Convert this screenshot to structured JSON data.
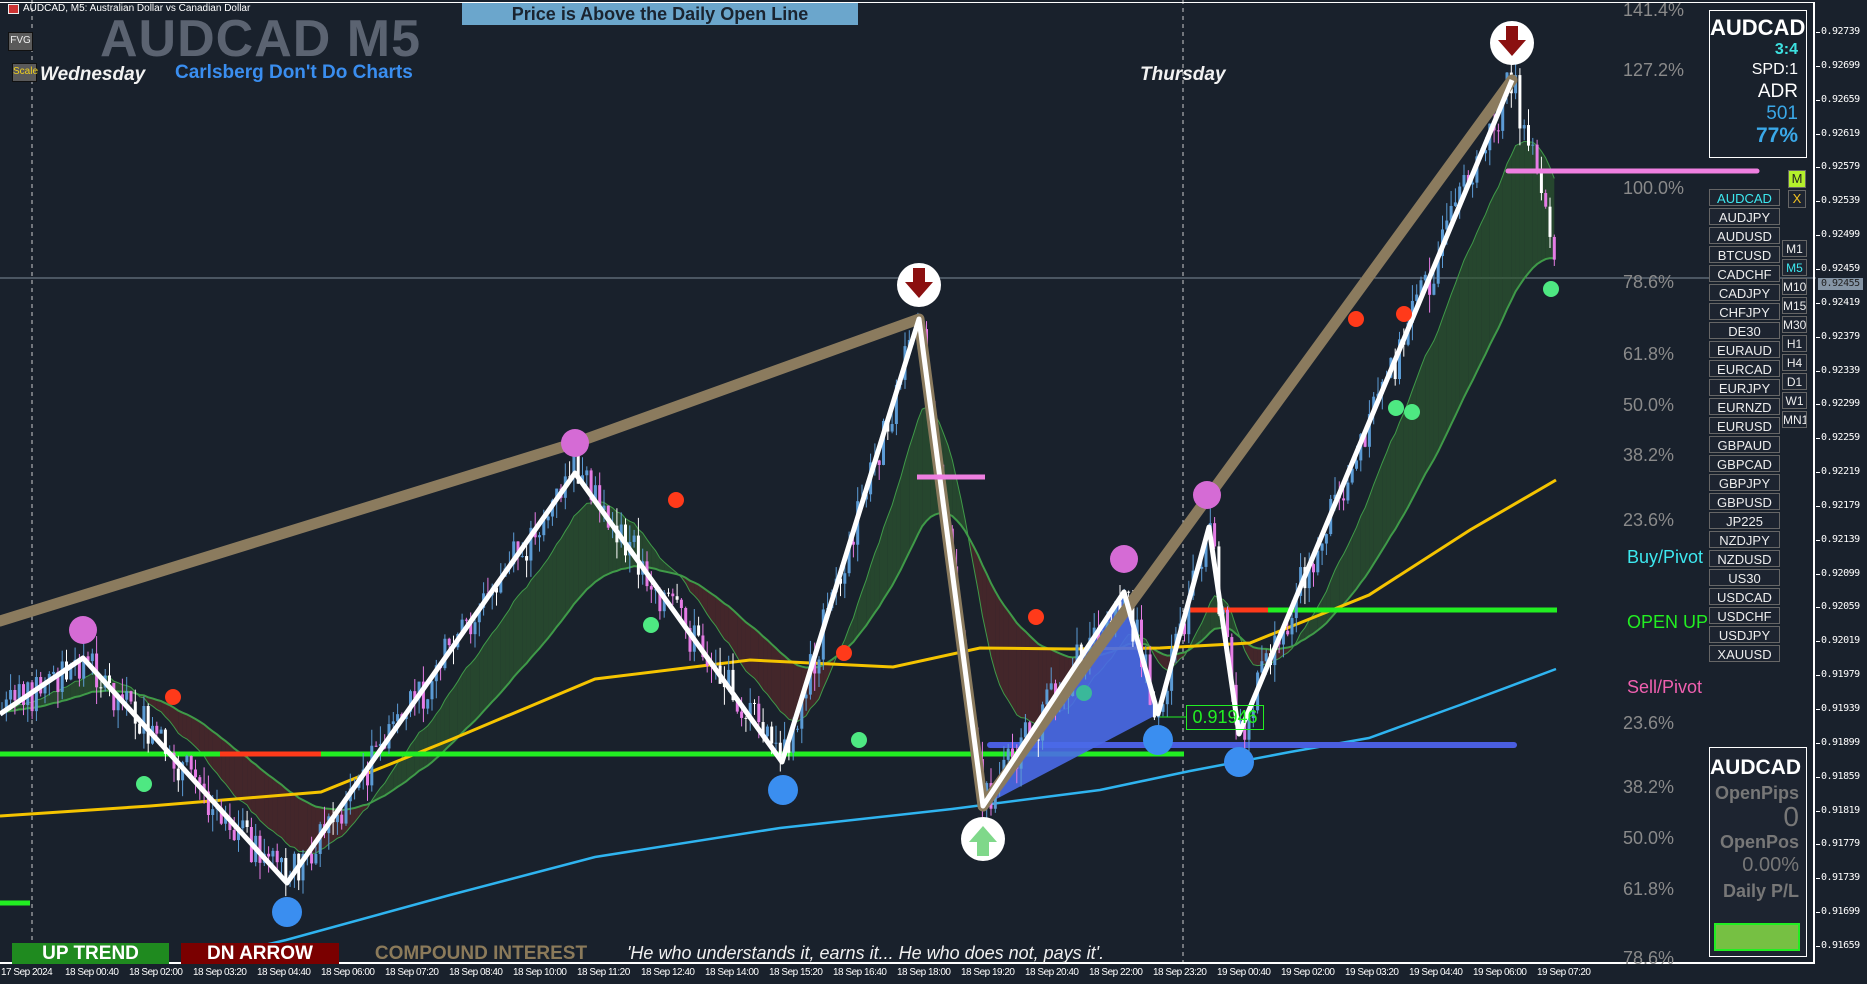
{
  "window": {
    "title": "AUDCAD, M5:  Australian Dollar vs Canadian Dollar"
  },
  "banner": "Price is Above the Daily Open Line",
  "watermark": {
    "symbol": "AUDCAD M5",
    "subtitle": "Carlsberg Don't Do Charts"
  },
  "buttons": {
    "fvg": "FVG",
    "scale": "Scale",
    "m": "M",
    "x": "X"
  },
  "days": {
    "left": "Wednesday",
    "right": "Thursday"
  },
  "fib_labels": [
    "141.4%",
    "127.2%",
    "100.0%",
    "78.6%",
    "61.8%",
    "50.0%",
    "38.2%",
    "23.6%",
    "23.6%",
    "38.2%",
    "50.0%",
    "61.8%",
    "78.6%"
  ],
  "pivot_labels": {
    "buy": "Buy/Pivot",
    "open": "OPEN UP",
    "sell": "Sell/Pivot"
  },
  "info": {
    "symbol": "AUDCAD",
    "ratio": "3:4",
    "spread": "SPD:1",
    "adr_label": "ADR",
    "adr_value": "501",
    "adr_pct": "77%"
  },
  "symbols": [
    "AUDCAD",
    "AUDJPY",
    "AUDUSD",
    "BTCUSD",
    "CADCHF",
    "CADJPY",
    "CHFJPY",
    "DE30",
    "EURAUD",
    "EURCAD",
    "EURJPY",
    "EURNZD",
    "EURUSD",
    "GBPAUD",
    "GBPCAD",
    "GBPJPY",
    "GBPUSD",
    "JP225",
    "NZDJPY",
    "NZDUSD",
    "US30",
    "USDCAD",
    "USDCHF",
    "USDJPY",
    "XAUUSD"
  ],
  "active_symbol": "AUDCAD",
  "timeframes": [
    "M1",
    "M5",
    "M10",
    "M15",
    "M30",
    "H1",
    "H4",
    "D1",
    "W1",
    "MN1"
  ],
  "active_timeframe": "M5",
  "panel": {
    "symbol": "AUDCAD",
    "open_pips_label": "OpenPips",
    "open_pips": "0",
    "open_pos_label": "OpenPos",
    "open_pos": "0.00%",
    "daily_pl_label": "Daily P/L"
  },
  "price_axis": [
    "0.92739",
    "0.92699",
    "0.92659",
    "0.92619",
    "0.92579",
    "0.92539",
    "0.92499",
    "0.92459",
    "0.92419",
    "0.92379",
    "0.92339",
    "0.92299",
    "0.92259",
    "0.92219",
    "0.92179",
    "0.92139",
    "0.92099",
    "0.92059",
    "0.92019",
    "0.91979",
    "0.91939",
    "0.91899",
    "0.91859",
    "0.91819",
    "0.91779",
    "0.91739",
    "0.91699",
    "0.91659"
  ],
  "current_price": "0.92455",
  "level_label": "0.91946",
  "time_axis": [
    "17 Sep 2024",
    "18 Sep 00:40",
    "18 Sep 02:00",
    "18 Sep 03:20",
    "18 Sep 04:40",
    "18 Sep 06:00",
    "18 Sep 07:20",
    "18 Sep 08:40",
    "18 Sep 10:00",
    "18 Sep 11:20",
    "18 Sep 12:40",
    "18 Sep 14:00",
    "18 Sep 15:20",
    "18 Sep 16:40",
    "18 Sep 18:00",
    "18 Sep 19:20",
    "18 Sep 20:40",
    "18 Sep 22:00",
    "18 Sep 23:20",
    "19 Sep 00:40",
    "19 Sep 02:00",
    "19 Sep 03:20",
    "19 Sep 04:40",
    "19 Sep 06:00",
    "19 Sep 07:20"
  ],
  "bottom": {
    "trend": "UP TREND",
    "arrow": "DN ARROW",
    "compound": "COMPOUND INTEREST",
    "quote": "'He who understands it, earns it... He who does not, pays it'."
  },
  "colors": {
    "bg": "#19212c",
    "up_candle": "#5b9bd5",
    "down_candle": "#e57ce5",
    "zigzag": "#8b7b5e",
    "ma_yellow": "#f5c400",
    "ma_blue": "#2fb4f0",
    "open_line": "#22ee22"
  }
}
